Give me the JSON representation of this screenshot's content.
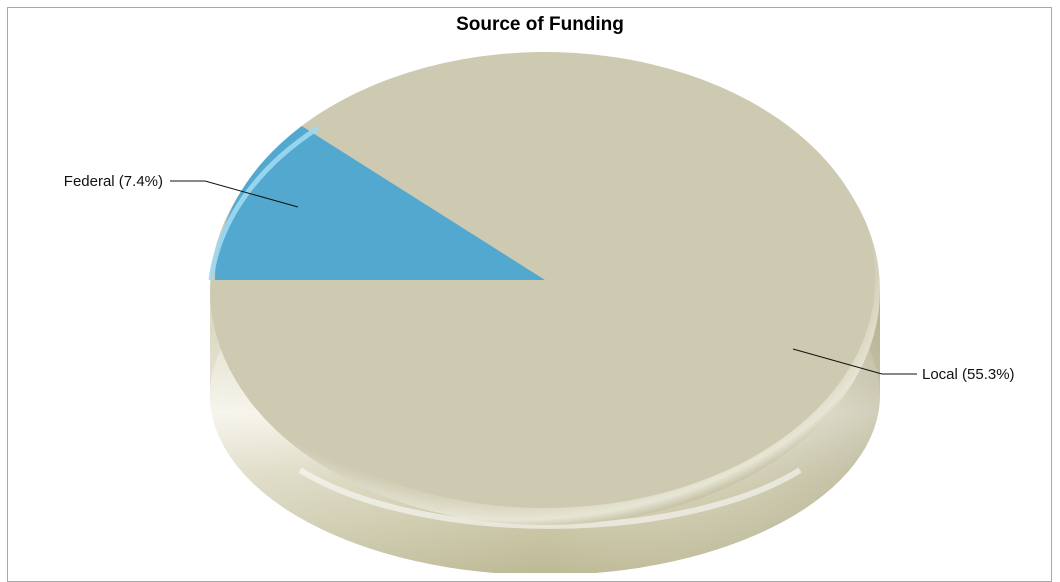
{
  "chart_data": {
    "type": "pie",
    "title": "Source of Funding",
    "slices": [
      {
        "label": "Federal (7.4%)",
        "category": "Federal",
        "value": 7.4,
        "color": "#52a8cf"
      },
      {
        "label": "Local (55.3%)",
        "category": "Local",
        "value": 55.3,
        "color": "#cdcab1"
      }
    ],
    "style": "3d",
    "legend": "none"
  }
}
